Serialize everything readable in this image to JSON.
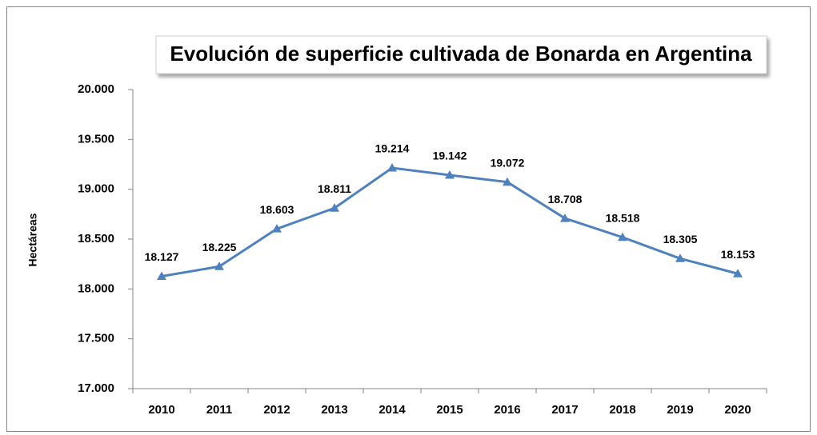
{
  "chart_data": {
    "type": "line",
    "title": "Evolución de superficie cultivada de Bonarda en Argentina",
    "y_label": "Hectáreas",
    "categories": [
      "2010",
      "2011",
      "2012",
      "2013",
      "2014",
      "2015",
      "2016",
      "2017",
      "2018",
      "2019",
      "2020"
    ],
    "series": [
      {
        "name": "Bonarda",
        "color": "#4f81bd",
        "values": [
          18127,
          18225,
          18603,
          18811,
          19214,
          19142,
          19072,
          18708,
          18518,
          18305,
          18153
        ],
        "value_labels": [
          "18.127",
          "18.225",
          "18.603",
          "18.811",
          "19.214",
          "19.142",
          "19.072",
          "18.708",
          "18.518",
          "18.305",
          "18.153"
        ]
      }
    ],
    "ylim": [
      17000,
      20000
    ],
    "yticks": [
      {
        "value": 17000,
        "label": "17.000"
      },
      {
        "value": 17500,
        "label": "17.500"
      },
      {
        "value": 18000,
        "label": "18.000"
      },
      {
        "value": 18500,
        "label": "18.500"
      },
      {
        "value": 19000,
        "label": "19.000"
      },
      {
        "value": 19500,
        "label": "19.500"
      },
      {
        "value": 20000,
        "label": "20.000"
      }
    ],
    "grid": false,
    "legend": false
  }
}
